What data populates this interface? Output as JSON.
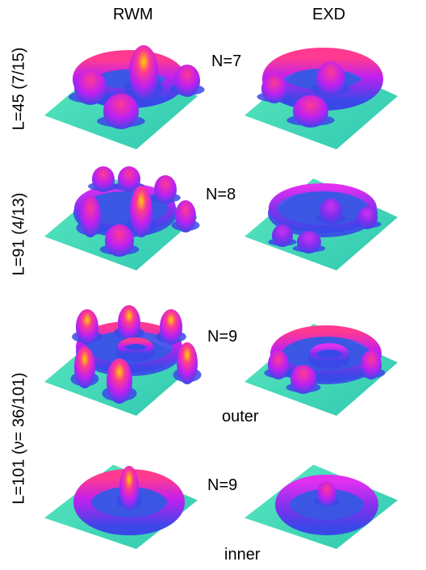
{
  "columns": [
    "RWM",
    "EXD"
  ],
  "rows": [
    {
      "side_label": "L=45 (7/15)",
      "n_label": "N=7"
    },
    {
      "side_label": "L=91 (4/13)",
      "n_label": "N=8"
    },
    {
      "side_label": "L=101 (ν= 36/101)",
      "n_label": "N=9",
      "sub_label": "outer"
    },
    {
      "n_label": "N=9",
      "sub_label": "inner"
    }
  ],
  "colors": {
    "base": "#40e0b0",
    "low": "#3a48e8",
    "mid": "#c020f0",
    "high": "#ff3a90",
    "peak": "#ffd000"
  }
}
